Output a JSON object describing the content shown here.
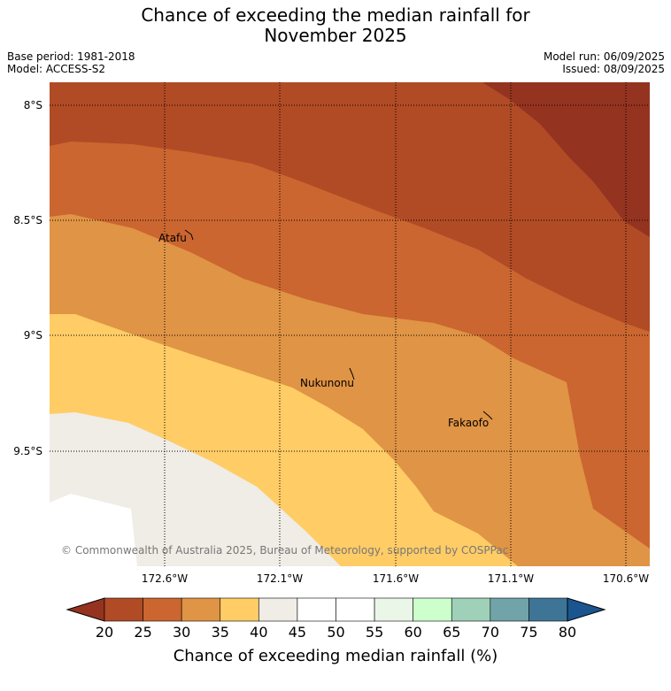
{
  "header": {
    "title_line1": "Chance of exceeding the median rainfall for",
    "title_line2": "November 2025",
    "base_period": "Base period: 1981-2018",
    "model": "Model: ACCESS-S2",
    "model_run": "Model run: 06/09/2025",
    "issued": "Issued: 08/09/2025"
  },
  "map": {
    "lat_labels": [
      "8°S",
      "8.5°S",
      "9°S",
      "9.5°S"
    ],
    "lon_labels": [
      "172.6°W",
      "172.1°W",
      "171.6°W",
      "171.1°W",
      "170.6°W"
    ],
    "places": [
      "Atafu",
      "Nukunonu",
      "Fakaofo"
    ],
    "copyright": "© Commonwealth of Australia 2025, Bureau of Meteorology, supported by COSPPac",
    "band_colors": {
      "below_20": "#943320",
      "20_25": "#b04b25",
      "25_30": "#cb6630",
      "30_35": "#e09445",
      "35_40": "#ffcc66",
      "40_45": "#f0ece6",
      "land": "#ffffff"
    }
  },
  "colorbar": {
    "ticks": [
      "20",
      "25",
      "30",
      "35",
      "40",
      "45",
      "50",
      "55",
      "60",
      "65",
      "70",
      "75",
      "80"
    ],
    "colors": [
      "#943320",
      "#b04b25",
      "#cb6630",
      "#e09445",
      "#ffcc66",
      "#f0ece6",
      "#ffffff",
      "#ffffff",
      "#eaf6e7",
      "#ccffcc",
      "#9fd0b8",
      "#70a4a8",
      "#3e7596",
      "#1a5590"
    ],
    "label": "Chance of exceeding median rainfall (%)"
  }
}
